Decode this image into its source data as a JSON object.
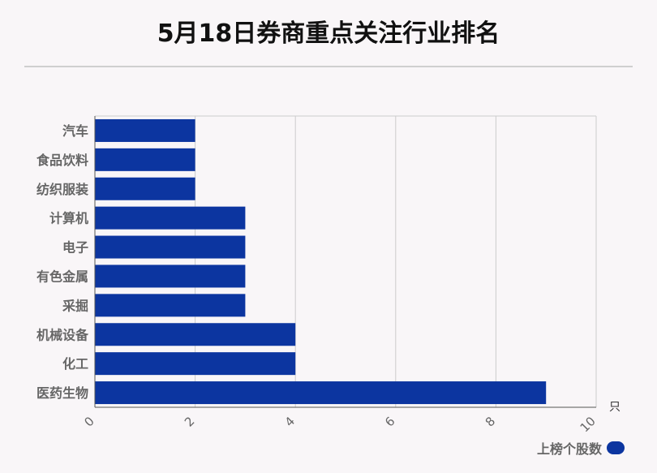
{
  "chart_data": {
    "type": "bar",
    "orientation": "horizontal",
    "title": "5月18日券商重点关注行业排名",
    "categories": [
      "汽车",
      "食品饮料",
      "纺织服装",
      "计算机",
      "电子",
      "有色金属",
      "采掘",
      "机械设备",
      "化工",
      "医药生物"
    ],
    "series": [
      {
        "name": "上榜个股数",
        "values": [
          2,
          2,
          2,
          3,
          3,
          3,
          3,
          4,
          4,
          9
        ]
      }
    ],
    "xlim": [
      0,
      10
    ],
    "xticks": [
      "0",
      "2",
      "4",
      "6",
      "8",
      "10"
    ],
    "x_unit": "只",
    "grid": true,
    "legend_position": "bottom-right",
    "bar_color": "#0c35a0"
  }
}
